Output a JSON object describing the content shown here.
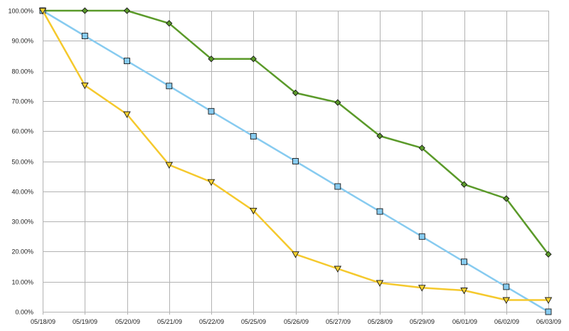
{
  "chart_data": {
    "type": "line",
    "title": "",
    "xlabel": "",
    "ylabel": "",
    "categories": [
      "05/18/09",
      "05/19/09",
      "05/20/09",
      "05/21/09",
      "05/22/09",
      "05/25/09",
      "05/26/09",
      "05/27/09",
      "05/28/09",
      "05/29/09",
      "06/01/09",
      "06/02/09",
      "06/03/09"
    ],
    "ylim": [
      0,
      100
    ],
    "ytick_step": 10,
    "ytick_format": "percent-2dp",
    "grid": {
      "vertical": true,
      "horizontal": true
    },
    "legend": "none",
    "series": [
      {
        "marker": "diamond",
        "color": "#5b9a2a",
        "marker_fill": "#5b9a2a",
        "values": [
          100,
          100,
          100,
          95.8,
          84,
          84,
          72.7,
          69.5,
          58.4,
          54.4,
          42.3,
          37.6,
          19.1
        ]
      },
      {
        "marker": "square",
        "color": "#87cbf0",
        "marker_fill": "#87cbf0",
        "values": [
          100,
          91.6,
          83.3,
          75,
          66.6,
          58.3,
          50,
          41.6,
          33.3,
          25,
          16.6,
          8.3,
          0
        ]
      },
      {
        "marker": "triangle-down",
        "color": "#f5c92d",
        "marker_fill": "#f5d130",
        "values": [
          100,
          75.2,
          65.6,
          48.8,
          43.1,
          33.6,
          19.1,
          14.3,
          9.6,
          8,
          7.1,
          3.9,
          3.9
        ]
      }
    ]
  }
}
